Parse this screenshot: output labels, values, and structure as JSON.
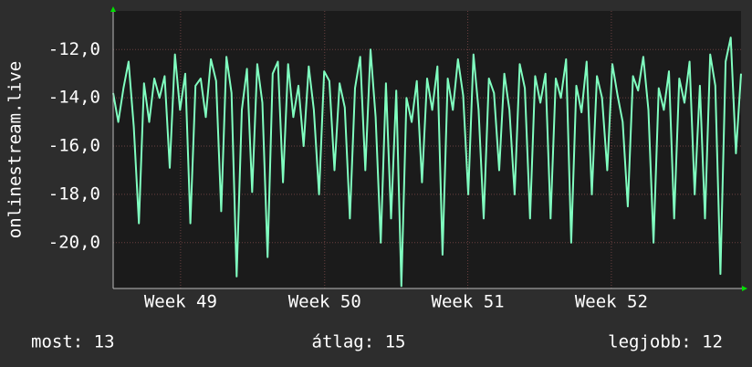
{
  "chart_data": {
    "type": "line",
    "ylabel": "onlinestream.live",
    "series": [
      {
        "color": "#80ffc0",
        "values": [
          -13.8,
          -15.0,
          -13.6,
          -12.5,
          -15.2,
          -19.2,
          -13.4,
          -15.0,
          -13.2,
          -14.0,
          -13.1,
          -16.9,
          -12.2,
          -14.5,
          -13.0,
          -19.2,
          -13.5,
          -13.2,
          -14.8,
          -12.4,
          -13.3,
          -18.7,
          -12.3,
          -13.8,
          -21.4,
          -14.5,
          -12.8,
          -17.9,
          -12.6,
          -14.2,
          -20.6,
          -13.0,
          -12.5,
          -17.5,
          -12.6,
          -14.8,
          -13.5,
          -16.0,
          -12.7,
          -14.5,
          -18.0,
          -12.9,
          -13.3,
          -17.0,
          -13.4,
          -14.4,
          -19.0,
          -13.6,
          -12.3,
          -17.0,
          -12.0,
          -14.8,
          -20.0,
          -13.4,
          -19.0,
          -13.7,
          -21.8,
          -14.0,
          -15.0,
          -13.3,
          -17.5,
          -13.2,
          -14.5,
          -12.7,
          -20.5,
          -13.2,
          -14.5,
          -12.4,
          -13.9,
          -18.0,
          -12.2,
          -14.5,
          -19.0,
          -13.2,
          -13.8,
          -17.0,
          -13.0,
          -14.5,
          -18.0,
          -12.6,
          -13.6,
          -19.0,
          -13.1,
          -14.2,
          -13.0,
          -19.0,
          -13.2,
          -14.0,
          -12.4,
          -20.0,
          -13.5,
          -14.6,
          -12.5,
          -18.0,
          -13.1,
          -14.0,
          -17.0,
          -12.6,
          -13.9,
          -15.0,
          -18.5,
          -13.1,
          -13.7,
          -12.3,
          -14.5,
          -20.0,
          -13.6,
          -14.5,
          -12.9,
          -19.0,
          -13.2,
          -14.2,
          -12.5,
          -18.0,
          -13.5,
          -19.0,
          -12.2,
          -13.5,
          -21.3,
          -12.5,
          -11.5,
          -16.3,
          -13.0
        ]
      }
    ],
    "xlim": [
      0,
      122
    ],
    "xticks": [
      {
        "value": 13.1,
        "label": "Week 49"
      },
      {
        "value": 41.1,
        "label": "Week 50"
      },
      {
        "value": 68.9,
        "label": "Week 51"
      },
      {
        "value": 96.8,
        "label": "Week 52"
      }
    ],
    "ylim": [
      -21.9,
      -10.4
    ],
    "yticks": [
      {
        "value": -12,
        "label": "-12,0"
      },
      {
        "value": -14,
        "label": "-14,0"
      },
      {
        "value": -16,
        "label": "-16,0"
      },
      {
        "value": -18,
        "label": "-18,0"
      },
      {
        "value": -20,
        "label": "-20,0"
      }
    ],
    "grid": true,
    "stats": [
      "most: 13",
      "átlag: 15",
      "legjobb: 12"
    ]
  }
}
